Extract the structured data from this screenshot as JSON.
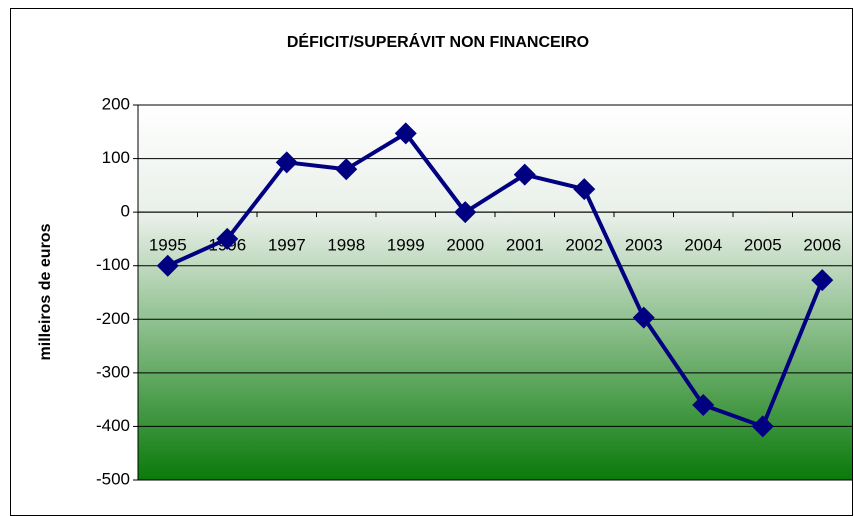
{
  "chart_data": {
    "type": "line",
    "title": "DÉFICIT/SUPERÁVIT   NON FINANCEIRO",
    "y_label": "milleiros de euros",
    "categories": [
      "1995",
      "1996",
      "1997",
      "1998",
      "1999",
      "2000",
      "2001",
      "2002",
      "2003",
      "2004",
      "2005",
      "2006"
    ],
    "values": [
      -100,
      -50,
      93,
      80,
      147,
      0,
      70,
      43,
      -197,
      -360,
      -400,
      -127
    ],
    "color": "#000080",
    "ylim": [
      -500,
      200
    ],
    "yticks": [
      -500,
      -400,
      -300,
      -200,
      -100,
      0,
      100,
      200
    ],
    "grid": true
  }
}
